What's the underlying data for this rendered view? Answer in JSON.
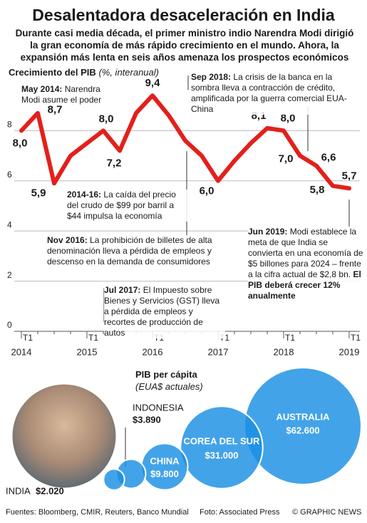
{
  "title": "Desalentadora desaceleración en India",
  "subtitle": "Durante casi media década, el primer ministro indio Narendra Modi dirigió la gran economía de más rápido crecimiento en el mundo. Ahora, la expansión más lenta en seis años amenaza los prospectos económicos",
  "chart_data": [
    {
      "type": "line",
      "title": "Crecimiento del PIB",
      "unit": "(%, interanual)",
      "categories": [
        "T1",
        null,
        null,
        null,
        "T1",
        null,
        null,
        null,
        "T1",
        null,
        null,
        null,
        "T1",
        null,
        null,
        null,
        "T1",
        null,
        null,
        null,
        "T1"
      ],
      "year_labels": [
        "2014",
        "2015",
        "2016",
        "2017",
        "2018",
        "2019"
      ],
      "values": [
        8.0,
        8.7,
        5.9,
        7.0,
        7.5,
        8.0,
        7.2,
        8.7,
        9.4,
        8.6,
        7.6,
        7.0,
        6.0,
        6.8,
        7.5,
        8.1,
        8.0,
        7.0,
        6.6,
        5.8,
        5.7
      ],
      "value_labels": [
        "8,0",
        "8,7",
        "5,9",
        null,
        null,
        "8,0",
        "7,2",
        null,
        "9,4",
        null,
        null,
        null,
        "6,0",
        null,
        null,
        "8,1",
        "8,0",
        "7,0",
        "6,6",
        "5,8",
        "5,7"
      ],
      "color": "#e3201b",
      "ylim": [
        0,
        9.8
      ],
      "yticks": [
        0,
        2,
        4,
        6,
        8
      ],
      "grid": true,
      "annotations": [
        {
          "lead": "May 2014:",
          "body": "Narendra Modi asume el poder"
        },
        {
          "lead": "Sep 2018:",
          "body": "La crisis de la banca en la sombra lleva a contracción de crédito, amplificada por la guerra comercial EUA-China"
        },
        {
          "lead": "2014-16:",
          "body": "La caída del precio del crudo de $99 por barril a $44 impulsa la economía"
        },
        {
          "lead": "Nov 2016:",
          "body": "La prohibición de billetes de alta denominación lleva a pérdida de empleos y descenso en la demanda de consumidores"
        },
        {
          "lead": "Jul 2017:",
          "body": "El Impuesto sobre Bienes y Servicios (GST) lleva a pérdida de empleos y recortes de producción de autos"
        },
        {
          "lead": "Jun 2019:",
          "body": "Modi establece la meta de que India se convierta en una economía de $5 billones para 2024 – frente a la cifra actual de $2,8 bn.",
          "tail": "El PIB deberá crecer 12% anualmente"
        }
      ]
    },
    {
      "type": "bubble",
      "title": "PIB per cápita",
      "unit": "(EUA$ actuales)",
      "categories": [
        "INDIA",
        "INDONESIA",
        "CHINA",
        "COREA DEL SUR",
        "AUSTRALIA"
      ],
      "values": [
        2020,
        3890,
        9800,
        31000,
        62600
      ],
      "value_labels": [
        "$2.020",
        "$3.890",
        "$9.800",
        "$31.000",
        "$62.600"
      ],
      "color": "#1a8fe3"
    }
  ],
  "sources": "Fuentes: Bloomberg, CMIR, Reuters, Banco Mundial",
  "photo_credit": "Foto: Associated Press",
  "credit": "© GRAPHIC NEWS"
}
